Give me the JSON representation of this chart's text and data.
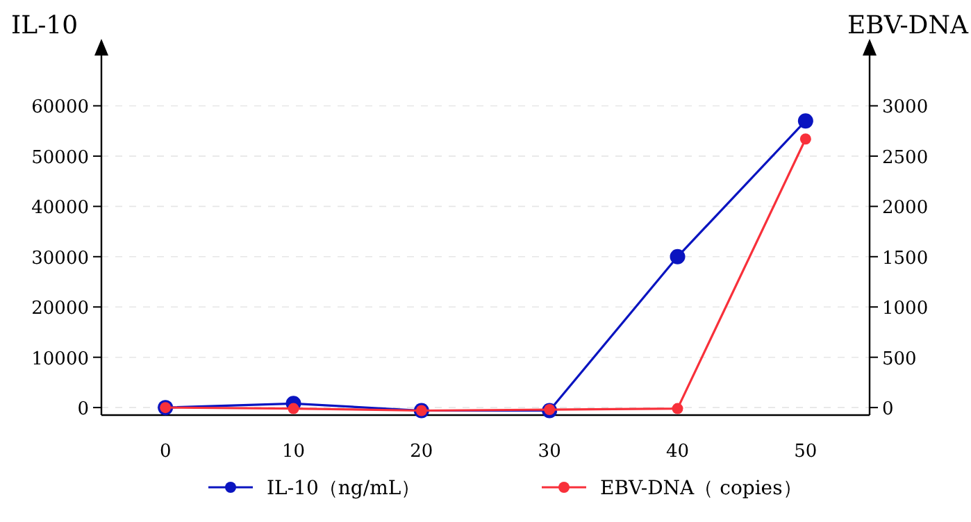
{
  "chart_data": {
    "type": "line",
    "ylabel": "IL-10",
    "y2label": "EBV-DNA",
    "x": [
      0,
      10,
      20,
      30,
      40,
      50
    ],
    "series": [
      {
        "name": "IL-10（ng/mL）",
        "color": "#0a14c0",
        "values": [
          0,
          800,
          -600,
          -600,
          30000,
          57000
        ]
      },
      {
        "name": "EBV-DNA（ copies）",
        "color": "#f8303a",
        "values": [
          0,
          -10,
          -30,
          -20,
          -10,
          2670
        ],
        "axis": "y2"
      }
    ],
    "xlim": [
      -5,
      55
    ],
    "xticks": [
      0,
      10,
      20,
      30,
      40,
      50
    ],
    "ylim": [
      -1500,
      70000
    ],
    "yticks": [
      0,
      10000,
      20000,
      30000,
      40000,
      50000,
      60000
    ],
    "y2lim": [
      -75,
      3500
    ],
    "y2ticks": [
      0,
      500,
      1000,
      1500,
      2000,
      2500,
      3000
    ],
    "grid": "y",
    "legend": "bottom",
    "marker": "circle",
    "line_style": "solid"
  }
}
